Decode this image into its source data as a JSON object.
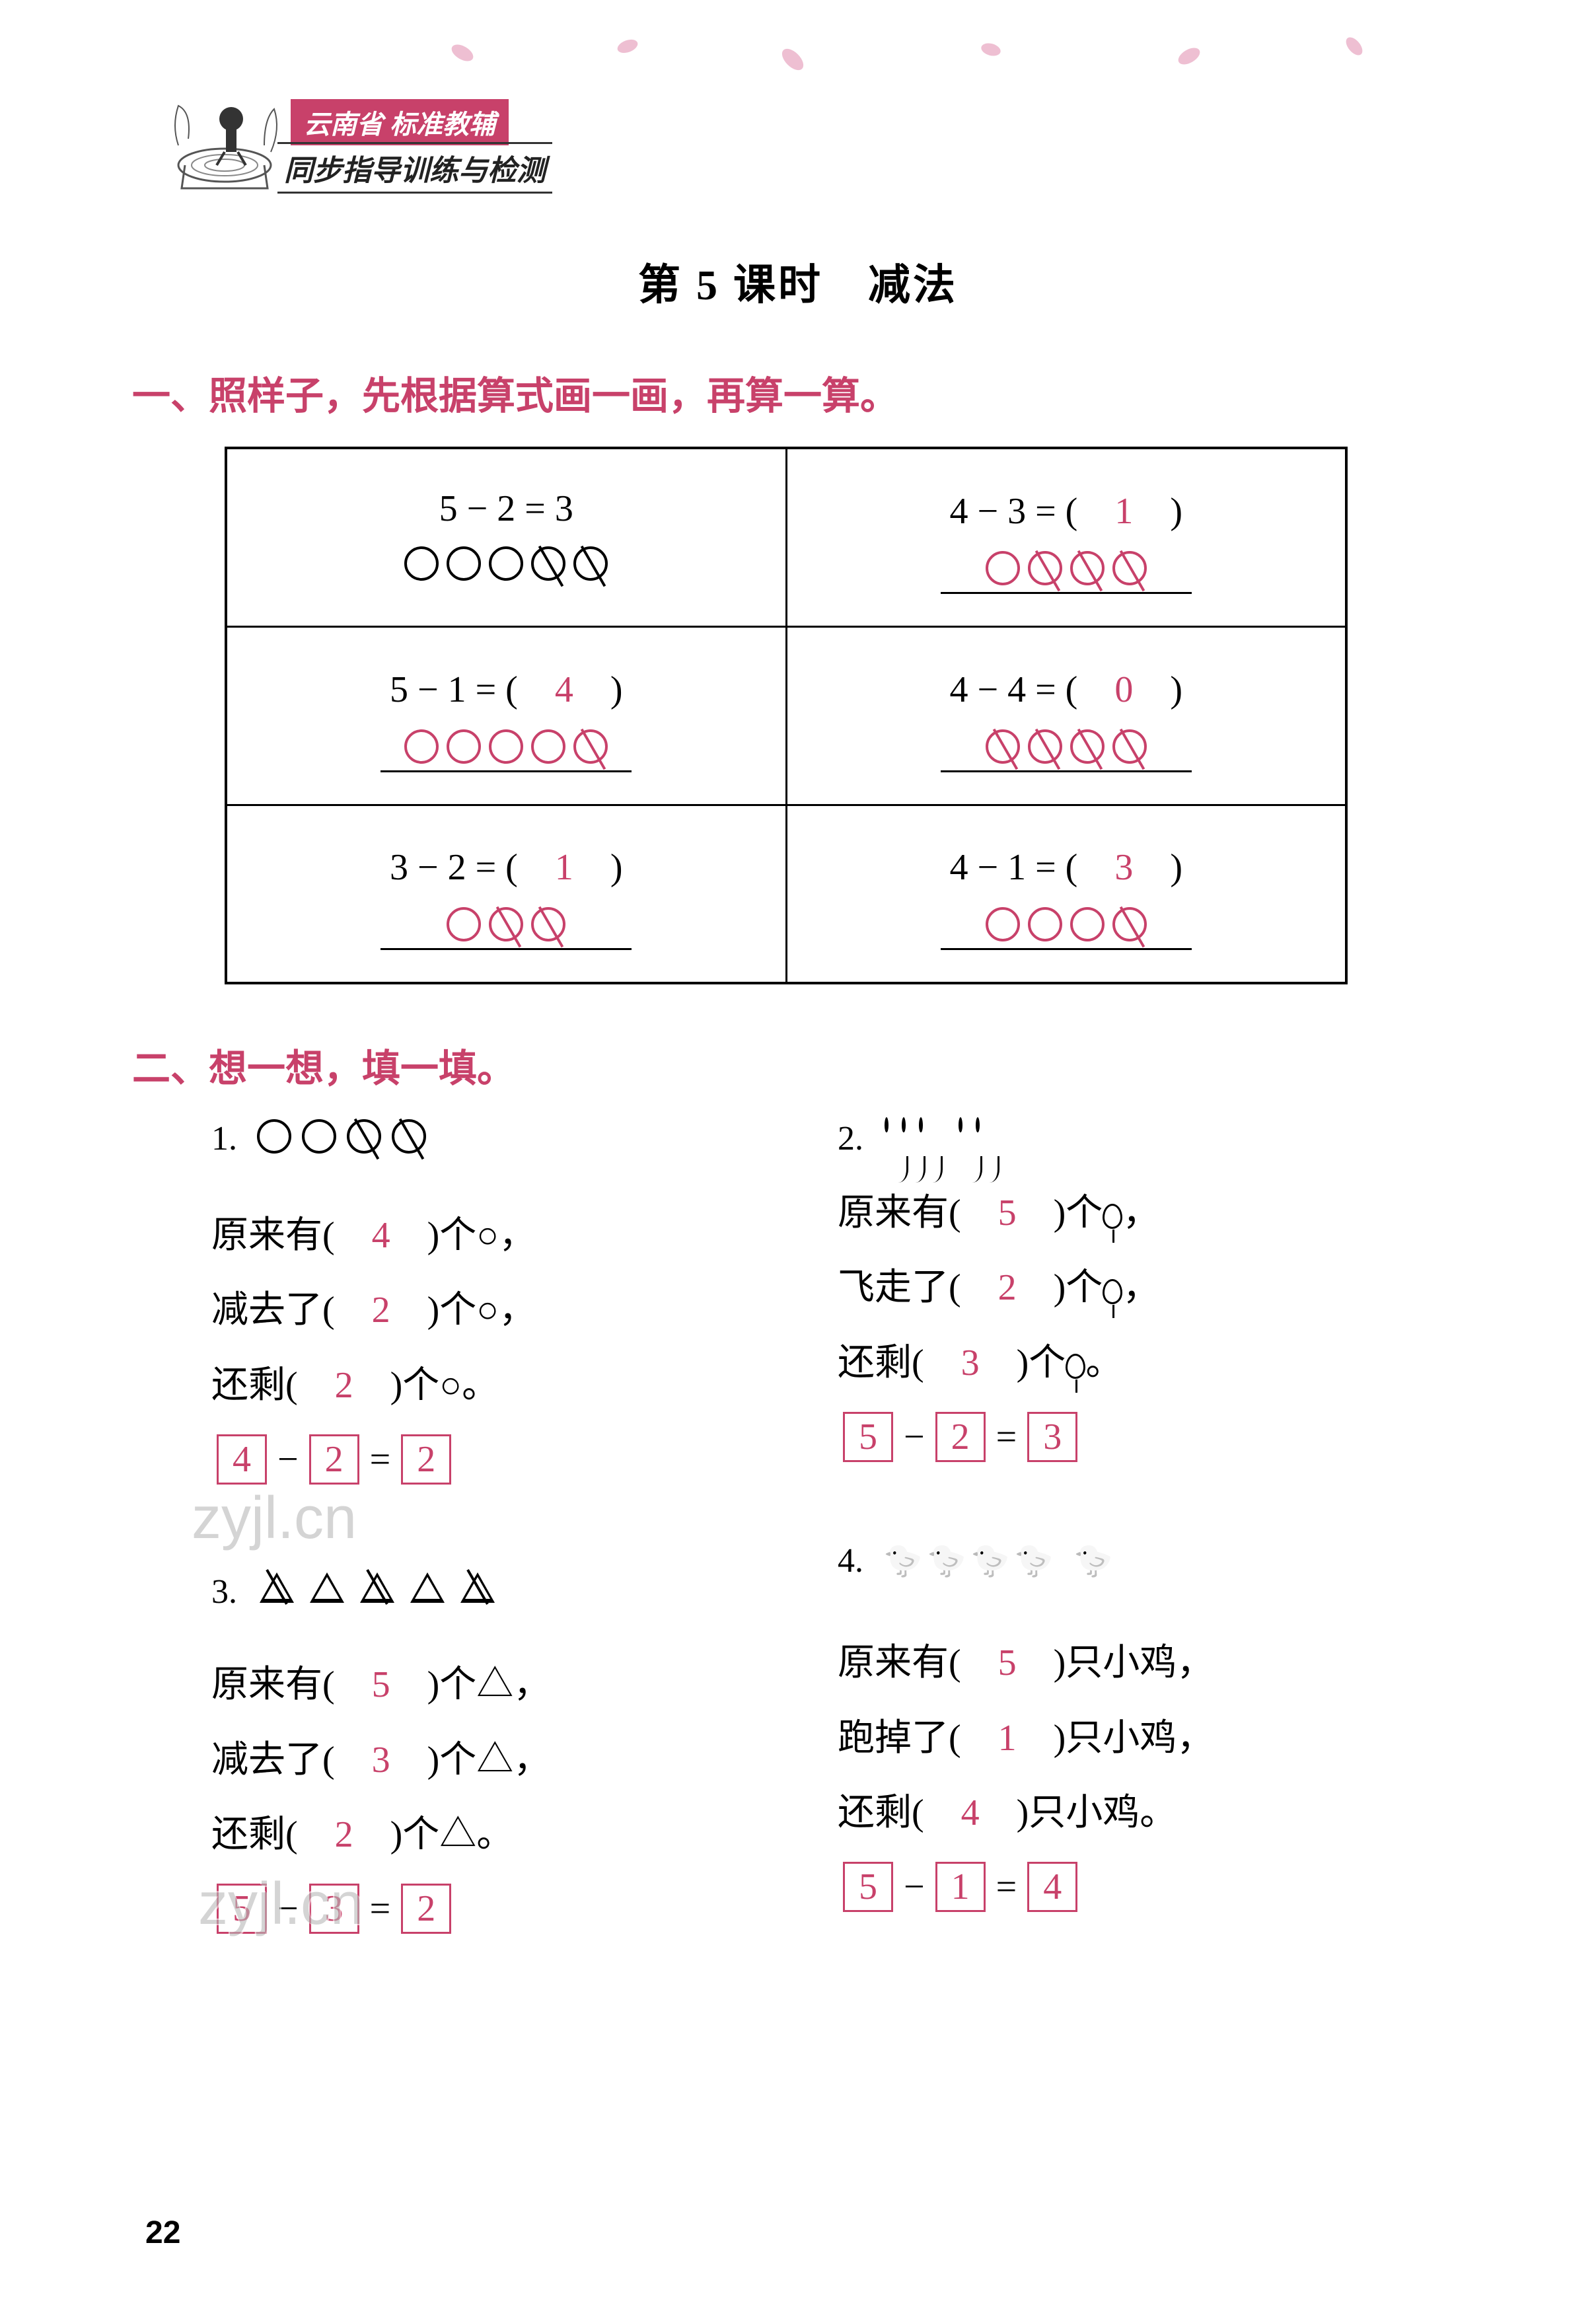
{
  "brand": {
    "line1": "云南省 标准教辅",
    "line2": "同步指导训练与检测"
  },
  "lesson_title": "第 5 课时　减法",
  "section1": {
    "heading": "一、照样子，先根据算式画一画，再算一算。",
    "cells": [
      {
        "eq_prefix": "5 − 2 = 3",
        "answer": "",
        "total": 5,
        "crossed": 2,
        "color": "black",
        "underline": false
      },
      {
        "eq_prefix": "4 − 3 = (　",
        "answer": "1",
        "eq_suffix": "　)",
        "total": 4,
        "crossed": 3,
        "color": "pink",
        "underline": true
      },
      {
        "eq_prefix": "5 − 1 = (　",
        "answer": "4",
        "eq_suffix": "　)",
        "total": 5,
        "crossed": 1,
        "color": "pink",
        "underline": true
      },
      {
        "eq_prefix": "4 − 4 = (　",
        "answer": "0",
        "eq_suffix": "　)",
        "total": 4,
        "crossed": 4,
        "color": "pink",
        "underline": true
      },
      {
        "eq_prefix": "3 − 2 = (　",
        "answer": "1",
        "eq_suffix": "　)",
        "total": 3,
        "crossed": 2,
        "color": "pink",
        "underline": true
      },
      {
        "eq_prefix": "4 − 1 = (　",
        "answer": "3",
        "eq_suffix": "　)",
        "total": 4,
        "crossed": 1,
        "color": "pink",
        "underline": true
      }
    ]
  },
  "section2": {
    "heading": "二、想一想，填一填。",
    "items": [
      {
        "num": "1.",
        "shape": "circle",
        "l1_pre": "原来有(　",
        "l1_ans": "4",
        "l1_post": "　)个○，",
        "l2_pre": "减去了(　",
        "l2_ans": "2",
        "l2_post": "　)个○，",
        "l3_pre": "还剩(　",
        "l3_ans": "2",
        "l3_post": "　)个○。",
        "eq": {
          "a": "4",
          "b": "2",
          "c": "2"
        }
      },
      {
        "num": "2.",
        "shape": "balloon",
        "l1_pre": "原来有(　",
        "l1_ans": "5",
        "l1_post": "　)个",
        "l2_pre": "飞走了(　",
        "l2_ans": "2",
        "l2_post": "　)个",
        "l3_pre": "还剩(　",
        "l3_ans": "3",
        "l3_post": "　)个",
        "eq": {
          "a": "5",
          "b": "2",
          "c": "3"
        }
      },
      {
        "num": "3.",
        "shape": "triangle",
        "l1_pre": "原来有(　",
        "l1_ans": "5",
        "l1_post": "　)个△，",
        "l2_pre": "减去了(　",
        "l2_ans": "3",
        "l2_post": "　)个△，",
        "l3_pre": "还剩(　",
        "l3_ans": "2",
        "l3_post": "　)个△。",
        "eq": {
          "a": "5",
          "b": "3",
          "c": "2"
        }
      },
      {
        "num": "4.",
        "shape": "chick",
        "l1_pre": "原来有(　",
        "l1_ans": "5",
        "l1_post": "　)只小鸡，",
        "l2_pre": "跑掉了(　",
        "l2_ans": "1",
        "l2_post": "　)只小鸡，",
        "l3_pre": "还剩(　",
        "l3_ans": "4",
        "l3_post": "　)只小鸡。",
        "eq": {
          "a": "5",
          "b": "1",
          "c": "4"
        }
      }
    ]
  },
  "watermark": "zyjl.cn",
  "page_number": "22",
  "colors": {
    "accent": "#c8416a",
    "text": "#000000",
    "watermark": "#b8b8b8"
  }
}
